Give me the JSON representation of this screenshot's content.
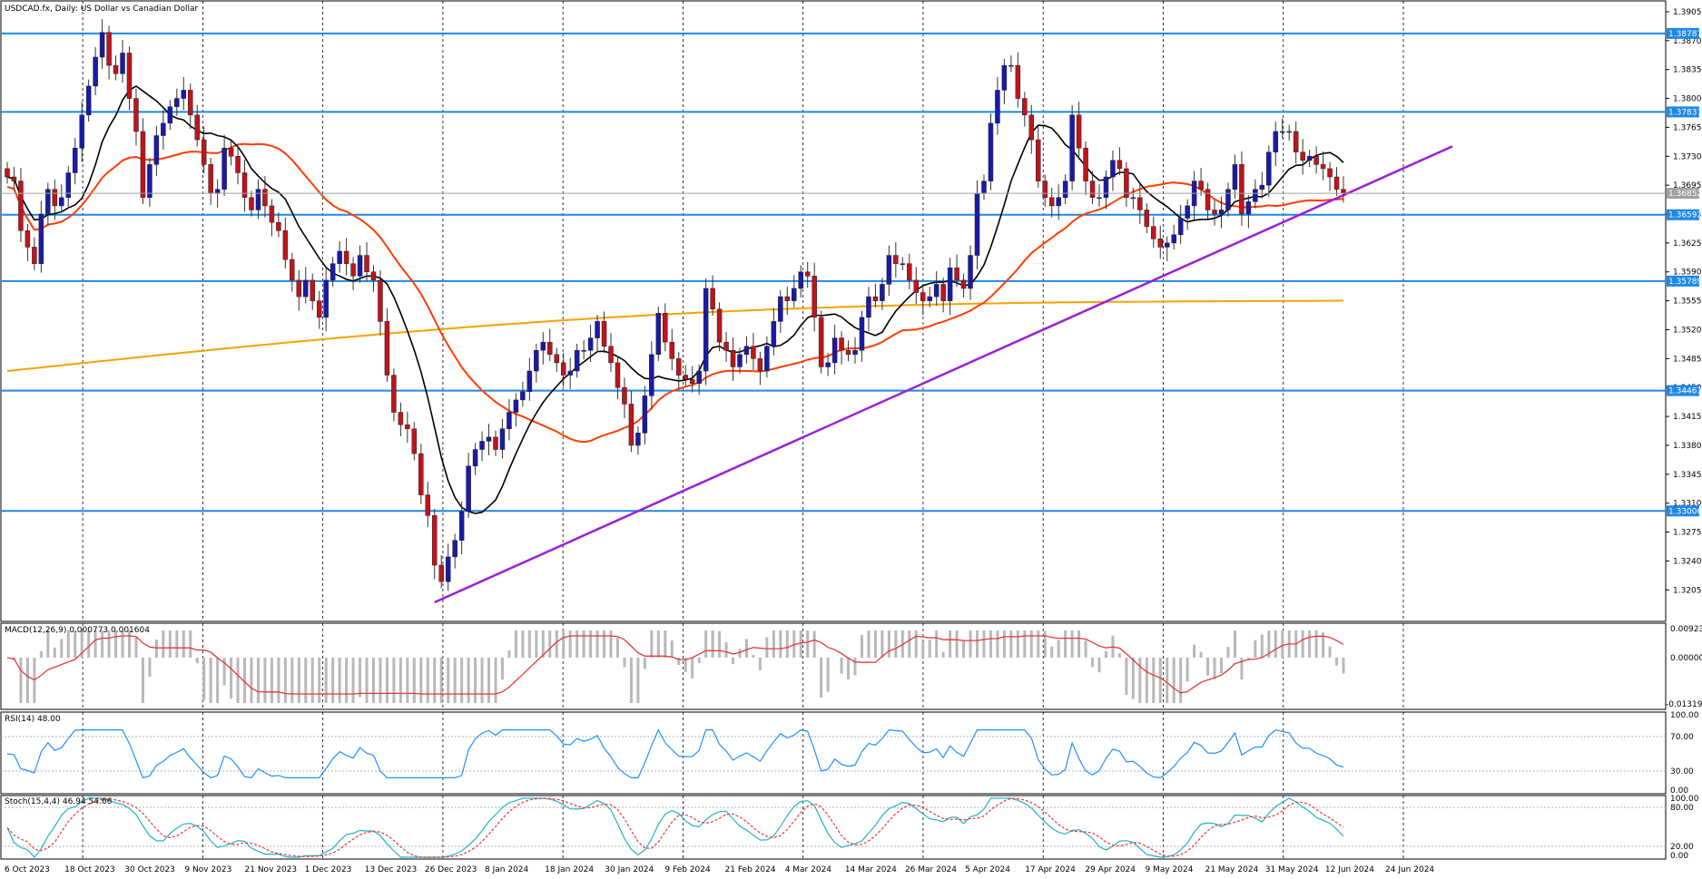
{
  "chart_data": {
    "type": "candlestick",
    "title": "USDCAD.fx, Daily:  US Dollar vs Canadian Dollar",
    "price_axis_labels": [
      "1.39050",
      "1.38700",
      "1.38350",
      "1.38000",
      "1.37650",
      "1.37300",
      "1.36950",
      "1.36600",
      "1.36250",
      "1.35900",
      "1.35550",
      "1.35200",
      "1.34850",
      "1.34500",
      "1.34150",
      "1.33800",
      "1.33450",
      "1.33100",
      "1.32750",
      "1.32400",
      "1.32050"
    ],
    "ylim": [
      1.3168,
      1.3917
    ],
    "date_labels": [
      "6 Oct 2023",
      "18 Oct 2023",
      "30 Oct 2023",
      "9 Nov 2023",
      "21 Nov 2023",
      "1 Dec 2023",
      "13 Dec 2023",
      "26 Dec 2023",
      "8 Jan 2024",
      "18 Jan 2024",
      "30 Jan 2024",
      "9 Feb 2024",
      "21 Feb 2024",
      "4 Mar 2024",
      "14 Mar 2024",
      "26 Mar 2024",
      "5 Apr 2024",
      "17 Apr 2024",
      "29 Apr 2024",
      "9 May 2024",
      "21 May 2024",
      "31 May 2024",
      "12 Jun 2024",
      "24 Jun 2024"
    ],
    "horizontal_levels": [
      {
        "value": 1.38787,
        "label": "1.38787"
      },
      {
        "value": 1.37837,
        "label": "1.37837"
      },
      {
        "value": 1.36592,
        "label": "1.36592"
      },
      {
        "value": 1.35789,
        "label": "1.35789"
      },
      {
        "value": 1.34463,
        "label": "1.34463"
      },
      {
        "value": 1.33006,
        "label": "1.33006"
      }
    ],
    "current_price": {
      "value": 1.36852,
      "label": "1.36852"
    },
    "trendline": {
      "start": {
        "date": "26 Dec 2023",
        "price": 1.319
      },
      "end": {
        "date": "3 Jul 2024",
        "price": 1.3742
      }
    },
    "ohlc_close": [
      1.3705,
      1.37,
      1.364,
      1.362,
      1.36,
      1.366,
      1.369,
      1.367,
      1.368,
      1.371,
      1.374,
      1.378,
      1.3815,
      1.385,
      1.388,
      1.384,
      1.383,
      1.3855,
      1.38,
      1.376,
      1.368,
      1.372,
      1.3755,
      1.377,
      1.379,
      1.38,
      1.381,
      1.378,
      1.375,
      1.372,
      1.3685,
      1.369,
      1.374,
      1.373,
      1.371,
      1.368,
      1.3665,
      1.369,
      1.367,
      1.365,
      1.364,
      1.3605,
      1.358,
      1.356,
      1.358,
      1.3555,
      1.3535,
      1.358,
      1.36,
      1.3615,
      1.36,
      1.3585,
      1.361,
      1.359,
      1.358,
      1.353,
      1.3465,
      1.342,
      1.3405,
      1.34,
      1.337,
      1.332,
      1.3295,
      1.3235,
      1.3215,
      1.3245,
      1.3265,
      1.33,
      1.3355,
      1.3375,
      1.3385,
      1.339,
      1.3375,
      1.34,
      1.342,
      1.3435,
      1.3445,
      1.347,
      1.3495,
      1.3505,
      1.349,
      1.348,
      1.3465,
      1.347,
      1.3495,
      1.3495,
      1.351,
      1.353,
      1.35,
      1.348,
      1.345,
      1.343,
      1.338,
      1.3395,
      1.344,
      1.349,
      1.354,
      1.3505,
      1.3485,
      1.3465,
      1.346,
      1.3455,
      1.347,
      1.357,
      1.3545,
      1.3505,
      1.3495,
      1.3475,
      1.349,
      1.35,
      1.3485,
      1.347,
      1.35,
      1.353,
      1.356,
      1.3555,
      1.357,
      1.359,
      1.3585,
      1.3535,
      1.3475,
      1.348,
      1.351,
      1.3495,
      1.349,
      1.3495,
      1.3535,
      1.356,
      1.3555,
      1.3575,
      1.361,
      1.36,
      1.36,
      1.358,
      1.3565,
      1.3555,
      1.356,
      1.3575,
      1.3555,
      1.3595,
      1.358,
      1.357,
      1.361,
      1.3685,
      1.37,
      1.377,
      1.381,
      1.384,
      1.384,
      1.38,
      1.378,
      1.375,
      1.37,
      1.368,
      1.367,
      1.368,
      1.37,
      1.378,
      1.374,
      1.37,
      1.368,
      1.368,
      1.3705,
      1.3725,
      1.3715,
      1.368,
      1.368,
      1.3665,
      1.3645,
      1.363,
      1.362,
      1.3625,
      1.3635,
      1.3655,
      1.367,
      1.37,
      1.369,
      1.3665,
      1.366,
      1.3665,
      1.369,
      1.372,
      1.366,
      1.3675,
      1.369,
      1.3695,
      1.3735,
      1.376,
      1.376,
      1.376,
      1.3735,
      1.3725,
      1.373,
      1.372,
      1.3715,
      1.3705,
      1.369,
      1.3685
    ]
  }
}
